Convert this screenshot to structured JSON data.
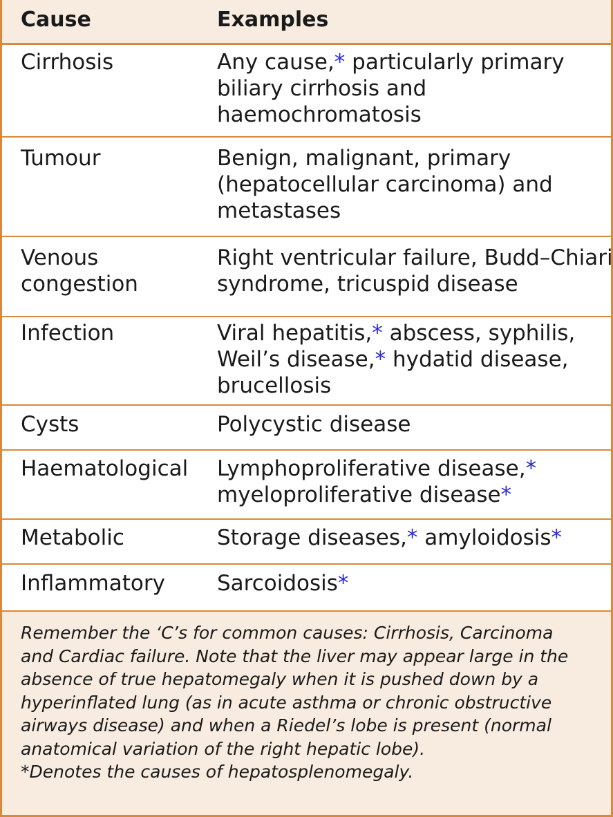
{
  "header": {
    "cause": "Cause",
    "examples": "Examples"
  },
  "rows": [
    {
      "cause": [
        "Cirrhosis"
      ],
      "examples": [
        [
          {
            "t": "Any cause,"
          },
          {
            "t": "*",
            "star": true
          },
          {
            "t": " particularly primary"
          }
        ],
        [
          {
            "t": "biliary cirrhosis and"
          }
        ],
        [
          {
            "t": "haemochromatosis"
          }
        ]
      ]
    },
    {
      "cause": [
        "Tumour"
      ],
      "examples": [
        [
          {
            "t": "Benign, malignant, primary"
          }
        ],
        [
          {
            "t": "(hepatocellular carcinoma) and"
          }
        ],
        [
          {
            "t": "metastases"
          }
        ]
      ]
    },
    {
      "cause": [
        "Venous",
        "congestion"
      ],
      "examples": [
        [
          {
            "t": "Right ventricular failure, Budd–Chiari"
          }
        ],
        [
          {
            "t": "syndrome, tricuspid disease"
          }
        ]
      ]
    },
    {
      "cause": [
        "Infection"
      ],
      "examples": [
        [
          {
            "t": "Viral hepatitis,"
          },
          {
            "t": "*",
            "star": true
          },
          {
            "t": " abscess, syphilis,"
          }
        ],
        [
          {
            "t": "Weil’s disease,"
          },
          {
            "t": "*",
            "star": true
          },
          {
            "t": " hydatid disease,"
          }
        ],
        [
          {
            "t": "brucellosis"
          }
        ]
      ]
    },
    {
      "cause": [
        "Cysts"
      ],
      "examples": [
        [
          {
            "t": "Polycystic disease"
          }
        ]
      ]
    },
    {
      "cause": [
        "Haematological"
      ],
      "examples": [
        [
          {
            "t": "Lymphoproliferative disease,"
          },
          {
            "t": "*",
            "star": true
          }
        ],
        [
          {
            "t": "myeloproliferative disease"
          },
          {
            "t": "*",
            "star": true
          }
        ]
      ]
    },
    {
      "cause": [
        "Metabolic"
      ],
      "examples": [
        [
          {
            "t": "Storage diseases,"
          },
          {
            "t": "*",
            "star": true
          },
          {
            "t": " amyloidosis"
          },
          {
            "t": "*",
            "star": true
          }
        ]
      ]
    },
    {
      "cause": [
        "Inflammatory"
      ],
      "examples": [
        [
          {
            "t": "Sarcoidosis"
          },
          {
            "t": "*",
            "star": true
          }
        ]
      ]
    }
  ],
  "note": [
    "Remember the ‘C’s for common causes: Cirrhosis, Carcinoma",
    "and Cardiac failure. Note that the liver may appear large in the",
    "absence of true hepatomegaly when it is pushed down by a",
    "hyperinflated lung (as in acute asthma or chronic obstructive",
    "airways disease) and when a Riedel’s lobe is present (normal",
    "anatomical variation of the right hepatic lobe).",
    "*Denotes the causes of hepatosplenomegaly."
  ],
  "colors": {
    "border": "#d8893c",
    "header_bg": "#f8ece0",
    "star": "#2b2bd6"
  }
}
